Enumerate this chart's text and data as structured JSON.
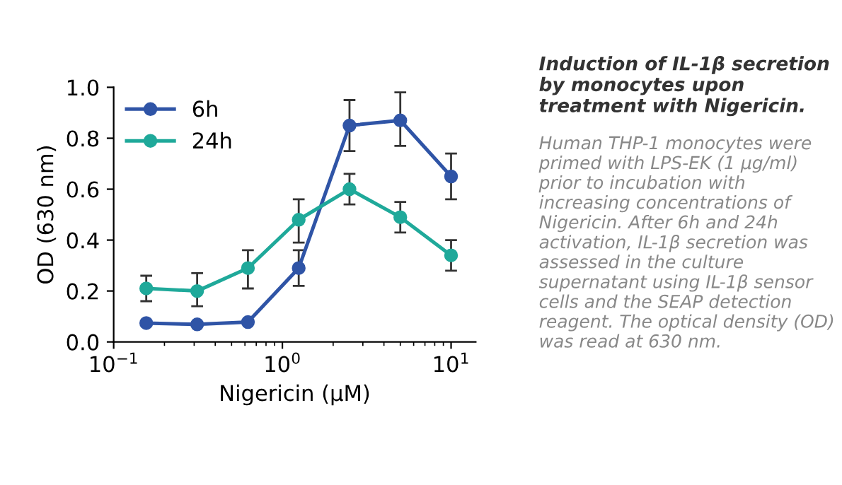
{
  "chart_data": {
    "type": "line",
    "xlabel": "Nigericin (µM)",
    "ylabel": "OD (630 nm)",
    "x": [
      0.156,
      0.3125,
      0.625,
      1.25,
      2.5,
      5,
      10
    ],
    "series": [
      {
        "name": "6h",
        "color": "#2f54a6",
        "values": [
          0.074,
          0.069,
          0.078,
          0.29,
          0.85,
          0.87,
          0.65
        ],
        "errors": [
          null,
          null,
          null,
          [
            0.22,
            0.36
          ],
          [
            0.75,
            0.95
          ],
          [
            0.77,
            0.98
          ],
          [
            0.56,
            0.74
          ]
        ]
      },
      {
        "name": "24h",
        "color": "#1fa99a",
        "values": [
          0.21,
          0.2,
          0.29,
          0.48,
          0.6,
          0.49,
          0.34
        ],
        "errors": [
          [
            0.16,
            0.26
          ],
          [
            0.14,
            0.27
          ],
          [
            0.21,
            0.36
          ],
          [
            0.39,
            0.56
          ],
          [
            0.54,
            0.66
          ],
          [
            0.43,
            0.55
          ],
          [
            0.28,
            0.4
          ]
        ]
      }
    ],
    "log": "x",
    "xlim": [
      0.1,
      14
    ],
    "xticks": [
      {
        "value": 0.1,
        "label": "10$^{−1}$"
      },
      {
        "value": 1,
        "label": "10$^{0}$"
      },
      {
        "value": 10,
        "label": "10$^{1}$"
      }
    ],
    "ylim": [
      0,
      1.0
    ],
    "yticks": [
      {
        "value": 0,
        "label": "0.0"
      },
      {
        "value": 0.2,
        "label": "0.2"
      },
      {
        "value": 0.4,
        "label": "0.4"
      },
      {
        "value": 0.6,
        "label": "0.6"
      },
      {
        "value": 0.8,
        "label": "0.8"
      },
      {
        "value": 1.0,
        "label": "1.0"
      }
    ],
    "marker": "circle",
    "line_style": "solid",
    "grid": false,
    "legend": "top left",
    "title": "Induction of IL-1β secretion by monocytes upon treatment with Nigericin.",
    "annotations": [
      "Human THP-1 monocytes were primed with LPS-EK (1 µg/ml) prior to incubation with increasing concentrations of Nigericin. After 6h and 24h activation, IL-1β secretion was assessed in the culture supernatant using IL-1β sensor cells and the SEAP detection reagent. The optical density (OD) was read at 630 nm."
    ]
  }
}
